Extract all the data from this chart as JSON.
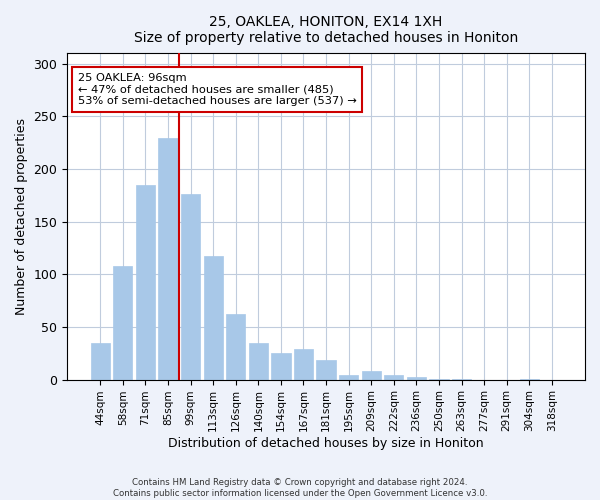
{
  "title": "25, OAKLEA, HONITON, EX14 1XH",
  "subtitle": "Size of property relative to detached houses in Honiton",
  "xlabel": "Distribution of detached houses by size in Honiton",
  "ylabel": "Number of detached properties",
  "bar_labels": [
    "44sqm",
    "58sqm",
    "71sqm",
    "85sqm",
    "99sqm",
    "113sqm",
    "126sqm",
    "140sqm",
    "154sqm",
    "167sqm",
    "181sqm",
    "195sqm",
    "209sqm",
    "222sqm",
    "236sqm",
    "250sqm",
    "263sqm",
    "277sqm",
    "291sqm",
    "304sqm",
    "318sqm"
  ],
  "bar_values": [
    35,
    108,
    185,
    230,
    176,
    117,
    62,
    35,
    25,
    29,
    19,
    4,
    8,
    4,
    2,
    1,
    1,
    0,
    0,
    1,
    0
  ],
  "bar_color": "#a8c8e8",
  "highlight_line_xindex": 4,
  "highlight_line_color": "#cc0000",
  "annotation_text": "25 OAKLEA: 96sqm\n← 47% of detached houses are smaller (485)\n53% of semi-detached houses are larger (537) →",
  "annotation_box_color": "#ffffff",
  "annotation_box_edgecolor": "#cc0000",
  "ylim": [
    0,
    310
  ],
  "yticks": [
    0,
    50,
    100,
    150,
    200,
    250,
    300
  ],
  "footer_line1": "Contains HM Land Registry data © Crown copyright and database right 2024.",
  "footer_line2": "Contains public sector information licensed under the Open Government Licence v3.0.",
  "background_color": "#eef2fa",
  "plot_background_color": "#ffffff",
  "grid_color": "#c0ccdd"
}
